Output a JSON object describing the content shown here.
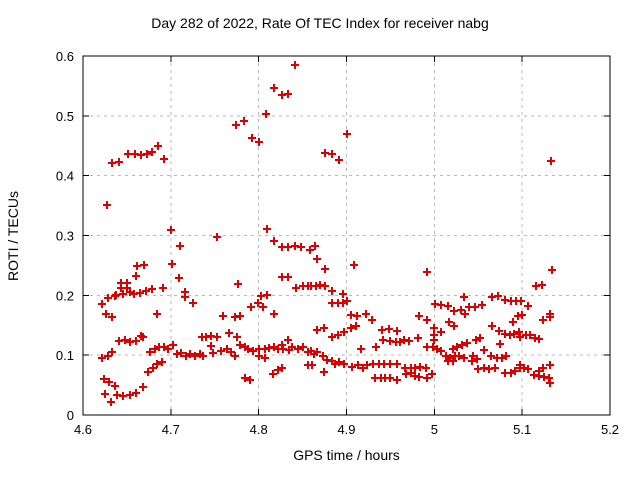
{
  "title": "Day 282 of 2022, Rate Of TEC Index for receiver nabg",
  "x_axis": {
    "label": "GPS time / hours",
    "range": [
      4.6,
      5.2
    ],
    "ticks": [
      {
        "value": 4.6,
        "label": "4.6"
      },
      {
        "value": 4.7,
        "label": "4.7"
      },
      {
        "value": 4.8,
        "label": "4.8"
      },
      {
        "value": 4.9,
        "label": "4.9"
      },
      {
        "value": 5.0,
        "label": "5"
      },
      {
        "value": 5.1,
        "label": "5.1"
      },
      {
        "value": 5.2,
        "label": "5.2"
      }
    ]
  },
  "y_axis": {
    "label": "ROTI / TECUs",
    "range": [
      0,
      0.6
    ],
    "ticks": [
      {
        "value": 0.0,
        "label": "0"
      },
      {
        "value": 0.1,
        "label": "0.1"
      },
      {
        "value": 0.2,
        "label": "0.2"
      },
      {
        "value": 0.3,
        "label": "0.3"
      },
      {
        "value": 0.4,
        "label": "0.4"
      },
      {
        "value": 0.5,
        "label": "0.5"
      },
      {
        "value": 0.6,
        "label": "0.6"
      }
    ]
  },
  "colors": {
    "marker": "#dd0000",
    "grid": "#b9b9b9",
    "axis": "#000000",
    "background": "#ffffff"
  },
  "chart_data": {
    "type": "scatter",
    "title": "Day 282 of 2022, Rate Of TEC Index for receiver nabg",
    "xlabel": "GPS time / hours",
    "ylabel": "ROTI / TECUs",
    "xlim": [
      4.6,
      5.2
    ],
    "ylim": [
      0,
      0.6
    ],
    "grid": true,
    "legend": "none",
    "marker": "plus",
    "series_name": "ROTI",
    "points": [
      [
        4.627,
        0.351
      ],
      [
        4.633,
        0.421
      ],
      [
        4.641,
        0.423
      ],
      [
        4.651,
        0.437
      ],
      [
        4.659,
        0.437
      ],
      [
        4.666,
        0.435
      ],
      [
        4.673,
        0.437
      ],
      [
        4.678,
        0.439
      ],
      [
        4.685,
        0.45
      ],
      [
        4.692,
        0.428
      ],
      [
        4.7,
        0.31
      ],
      [
        4.809,
        0.311
      ],
      [
        4.841,
        0.585
      ],
      [
        4.818,
        0.547
      ],
      [
        4.826,
        0.534
      ],
      [
        4.833,
        0.537
      ],
      [
        4.808,
        0.503
      ],
      [
        4.774,
        0.485
      ],
      [
        4.783,
        0.491
      ],
      [
        4.792,
        0.463
      ],
      [
        4.8,
        0.456
      ],
      [
        4.876,
        0.438
      ],
      [
        4.883,
        0.437
      ],
      [
        4.892,
        0.426
      ],
      [
        4.9,
        0.47
      ],
      [
        5.133,
        0.425
      ],
      [
        4.71,
        0.283
      ],
      [
        4.661,
        0.249
      ],
      [
        4.669,
        0.251
      ],
      [
        4.701,
        0.252
      ],
      [
        4.66,
        0.233
      ],
      [
        4.709,
        0.229
      ],
      [
        4.643,
        0.221
      ],
      [
        4.65,
        0.221
      ],
      [
        4.643,
        0.212
      ],
      [
        4.65,
        0.213
      ],
      [
        4.638,
        0.201
      ],
      [
        4.646,
        0.202
      ],
      [
        4.653,
        0.205
      ],
      [
        4.658,
        0.202
      ],
      [
        4.665,
        0.204
      ],
      [
        4.672,
        0.207
      ],
      [
        4.678,
        0.21
      ],
      [
        4.691,
        0.212
      ],
      [
        4.716,
        0.205
      ],
      [
        4.716,
        0.198
      ],
      [
        4.725,
        0.187
      ],
      [
        4.622,
        0.185
      ],
      [
        4.628,
        0.195
      ],
      [
        4.636,
        0.199
      ],
      [
        4.626,
        0.169
      ],
      [
        4.633,
        0.163
      ],
      [
        4.684,
        0.169
      ],
      [
        4.666,
        0.132
      ],
      [
        4.752,
        0.297
      ],
      [
        4.818,
        0.291
      ],
      [
        4.826,
        0.28
      ],
      [
        4.833,
        0.28
      ],
      [
        4.841,
        0.283
      ],
      [
        4.848,
        0.28
      ],
      [
        4.858,
        0.276
      ],
      [
        4.864,
        0.283
      ],
      [
        4.866,
        0.26
      ],
      [
        4.876,
        0.244
      ],
      [
        4.826,
        0.23
      ],
      [
        4.833,
        0.231
      ],
      [
        4.843,
        0.213
      ],
      [
        4.85,
        0.216
      ],
      [
        4.856,
        0.216
      ],
      [
        4.86,
        0.216
      ],
      [
        4.865,
        0.216
      ],
      [
        4.87,
        0.217
      ],
      [
        4.876,
        0.215
      ],
      [
        4.884,
        0.207
      ],
      [
        4.896,
        0.202
      ],
      [
        4.884,
        0.187
      ],
      [
        4.89,
        0.188
      ],
      [
        4.896,
        0.187
      ],
      [
        4.776,
        0.219
      ],
      [
        4.803,
        0.199
      ],
      [
        4.81,
        0.2
      ],
      [
        4.799,
        0.187
      ],
      [
        4.805,
        0.18
      ],
      [
        4.791,
        0.18
      ],
      [
        4.817,
        0.168
      ],
      [
        4.773,
        0.163
      ],
      [
        4.779,
        0.165
      ],
      [
        4.759,
        0.166
      ],
      [
        4.909,
        0.251
      ],
      [
        4.992,
        0.239
      ],
      [
        4.901,
        0.19
      ],
      [
        5.034,
        0.198
      ],
      [
        5.001,
        0.185
      ],
      [
        5.008,
        0.184
      ],
      [
        5.015,
        0.183
      ],
      [
        5.022,
        0.173
      ],
      [
        5.03,
        0.176
      ],
      [
        5.035,
        0.168
      ],
      [
        5.04,
        0.18
      ],
      [
        5.046,
        0.181
      ],
      [
        4.982,
        0.165
      ],
      [
        4.992,
        0.159
      ],
      [
        4.912,
        0.165
      ],
      [
        4.922,
        0.168
      ],
      [
        4.929,
        0.159
      ],
      [
        5.017,
        0.155
      ],
      [
        4.905,
        0.167
      ],
      [
        5.134,
        0.243
      ],
      [
        5.116,
        0.216
      ],
      [
        5.123,
        0.217
      ],
      [
        5.054,
        0.184
      ],
      [
        5.066,
        0.197
      ],
      [
        5.073,
        0.199
      ],
      [
        5.081,
        0.192
      ],
      [
        5.087,
        0.19
      ],
      [
        5.093,
        0.19
      ],
      [
        5.099,
        0.19
      ],
      [
        5.107,
        0.183
      ],
      [
        5.095,
        0.165
      ],
      [
        5.1,
        0.167
      ],
      [
        5.124,
        0.159
      ],
      [
        5.132,
        0.168
      ],
      [
        5.132,
        0.163
      ],
      [
        5.089,
        0.155
      ],
      [
        4.622,
        0.095
      ],
      [
        4.628,
        0.099
      ],
      [
        4.633,
        0.106
      ],
      [
        4.641,
        0.124
      ],
      [
        4.648,
        0.125
      ],
      [
        4.654,
        0.122
      ],
      [
        4.66,
        0.124
      ],
      [
        4.668,
        0.131
      ],
      [
        4.676,
        0.106
      ],
      [
        4.682,
        0.11
      ],
      [
        4.687,
        0.113
      ],
      [
        4.692,
        0.113
      ],
      [
        4.697,
        0.11
      ],
      [
        4.702,
        0.117
      ],
      [
        4.674,
        0.072
      ],
      [
        4.68,
        0.079
      ],
      [
        4.684,
        0.086
      ],
      [
        4.69,
        0.088
      ],
      [
        4.707,
        0.102
      ],
      [
        4.712,
        0.103
      ],
      [
        4.717,
        0.099
      ],
      [
        4.722,
        0.102
      ],
      [
        4.727,
        0.098
      ],
      [
        4.733,
        0.102
      ],
      [
        4.737,
        0.099
      ],
      [
        4.735,
        0.131
      ],
      [
        4.74,
        0.131
      ],
      [
        4.746,
        0.132
      ],
      [
        4.752,
        0.13
      ],
      [
        4.766,
        0.137
      ],
      [
        4.775,
        0.131
      ],
      [
        4.746,
        0.116
      ],
      [
        4.748,
        0.103
      ],
      [
        4.624,
        0.061
      ],
      [
        4.63,
        0.055
      ],
      [
        4.636,
        0.049
      ],
      [
        4.625,
        0.035
      ],
      [
        4.632,
        0.022
      ],
      [
        4.639,
        0.033
      ],
      [
        4.646,
        0.032
      ],
      [
        4.653,
        0.033
      ],
      [
        4.66,
        0.036
      ],
      [
        4.668,
        0.046
      ],
      [
        4.757,
        0.107
      ],
      [
        4.764,
        0.11
      ],
      [
        4.769,
        0.106
      ],
      [
        4.773,
        0.098
      ],
      [
        4.779,
        0.117
      ],
      [
        4.784,
        0.114
      ],
      [
        4.788,
        0.11
      ],
      [
        4.793,
        0.107
      ],
      [
        4.8,
        0.11
      ],
      [
        4.8,
        0.098
      ],
      [
        4.807,
        0.11
      ],
      [
        4.807,
        0.096
      ],
      [
        4.812,
        0.112
      ],
      [
        4.817,
        0.113
      ],
      [
        4.822,
        0.11
      ],
      [
        4.826,
        0.117
      ],
      [
        4.828,
        0.11
      ],
      [
        4.833,
        0.125
      ],
      [
        4.834,
        0.109
      ],
      [
        4.838,
        0.114
      ],
      [
        4.845,
        0.11
      ],
      [
        4.85,
        0.113
      ],
      [
        4.856,
        0.105
      ],
      [
        4.86,
        0.107
      ],
      [
        4.863,
        0.102
      ],
      [
        4.866,
        0.105
      ],
      [
        4.873,
        0.098
      ],
      [
        4.878,
        0.092
      ],
      [
        4.883,
        0.09
      ],
      [
        4.887,
        0.086
      ],
      [
        4.892,
        0.088
      ],
      [
        4.897,
        0.085
      ],
      [
        4.784,
        0.062
      ],
      [
        4.79,
        0.059
      ],
      [
        4.816,
        0.068
      ],
      [
        4.822,
        0.075
      ],
      [
        4.827,
        0.078
      ],
      [
        4.856,
        0.084
      ],
      [
        4.861,
        0.083
      ],
      [
        4.874,
        0.072
      ],
      [
        4.866,
        0.142
      ],
      [
        4.874,
        0.146
      ],
      [
        4.884,
        0.131
      ],
      [
        4.89,
        0.134
      ],
      [
        4.897,
        0.139
      ],
      [
        4.905,
        0.146
      ],
      [
        4.911,
        0.148
      ],
      [
        4.94,
        0.142
      ],
      [
        4.948,
        0.144
      ],
      [
        4.958,
        0.141
      ],
      [
        5.0,
        0.146
      ],
      [
        5.0,
        0.134
      ],
      [
        5.008,
        0.139
      ],
      [
        5.022,
        0.148
      ],
      [
        4.942,
        0.125
      ],
      [
        4.949,
        0.124
      ],
      [
        4.956,
        0.122
      ],
      [
        4.961,
        0.122
      ],
      [
        4.966,
        0.125
      ],
      [
        4.971,
        0.124
      ],
      [
        4.981,
        0.128
      ],
      [
        4.917,
        0.11
      ],
      [
        4.934,
        0.113
      ],
      [
        4.992,
        0.113
      ],
      [
        4.998,
        0.114
      ],
      [
        5.003,
        0.11
      ],
      [
        5.008,
        0.107
      ],
      [
        5.021,
        0.11
      ],
      [
        5.026,
        0.114
      ],
      [
        5.032,
        0.117
      ],
      [
        5.037,
        0.12
      ],
      [
        5.047,
        0.125
      ],
      [
        5.0,
        0.125
      ],
      [
        4.906,
        0.081
      ],
      [
        4.913,
        0.083
      ],
      [
        4.919,
        0.079
      ],
      [
        4.923,
        0.083
      ],
      [
        4.93,
        0.086
      ],
      [
        4.937,
        0.085
      ],
      [
        4.943,
        0.085
      ],
      [
        4.949,
        0.085
      ],
      [
        4.958,
        0.086
      ],
      [
        4.967,
        0.079
      ],
      [
        4.973,
        0.079
      ],
      [
        4.978,
        0.079
      ],
      [
        4.984,
        0.081
      ],
      [
        4.991,
        0.079
      ],
      [
        5.013,
        0.098
      ],
      [
        5.018,
        0.096
      ],
      [
        5.023,
        0.098
      ],
      [
        5.028,
        0.098
      ],
      [
        5.016,
        0.09
      ],
      [
        5.021,
        0.09
      ],
      [
        5.034,
        0.096
      ],
      [
        5.044,
        0.098
      ],
      [
        5.049,
        0.094
      ],
      [
        5.043,
        0.09
      ],
      [
        4.933,
        0.062
      ],
      [
        4.939,
        0.062
      ],
      [
        4.944,
        0.062
      ],
      [
        4.95,
        0.062
      ],
      [
        4.957,
        0.059
      ],
      [
        4.968,
        0.068
      ],
      [
        4.974,
        0.07
      ],
      [
        4.978,
        0.066
      ],
      [
        4.983,
        0.064
      ],
      [
        4.992,
        0.062
      ],
      [
        4.997,
        0.068
      ],
      [
        5.05,
        0.077
      ],
      [
        5.066,
        0.149
      ],
      [
        5.074,
        0.141
      ],
      [
        5.081,
        0.135
      ],
      [
        5.086,
        0.133
      ],
      [
        5.091,
        0.135
      ],
      [
        5.096,
        0.138
      ],
      [
        5.097,
        0.131
      ],
      [
        5.104,
        0.134
      ],
      [
        5.109,
        0.133
      ],
      [
        5.115,
        0.128
      ],
      [
        5.119,
        0.127
      ],
      [
        5.052,
        0.128
      ],
      [
        5.075,
        0.118
      ],
      [
        5.057,
        0.109
      ],
      [
        5.064,
        0.098
      ],
      [
        5.071,
        0.096
      ],
      [
        5.077,
        0.096
      ],
      [
        5.082,
        0.098
      ],
      [
        5.057,
        0.079
      ],
      [
        5.062,
        0.077
      ],
      [
        5.069,
        0.079
      ],
      [
        5.081,
        0.07
      ],
      [
        5.087,
        0.071
      ],
      [
        5.092,
        0.074
      ],
      [
        5.097,
        0.079
      ],
      [
        5.102,
        0.079
      ],
      [
        5.097,
        0.083
      ],
      [
        5.107,
        0.077
      ],
      [
        5.114,
        0.067
      ],
      [
        5.119,
        0.066
      ],
      [
        5.125,
        0.064
      ],
      [
        5.131,
        0.062
      ],
      [
        5.124,
        0.079
      ],
      [
        5.132,
        0.084
      ],
      [
        5.119,
        0.074
      ],
      [
        5.132,
        0.053
      ]
    ]
  }
}
